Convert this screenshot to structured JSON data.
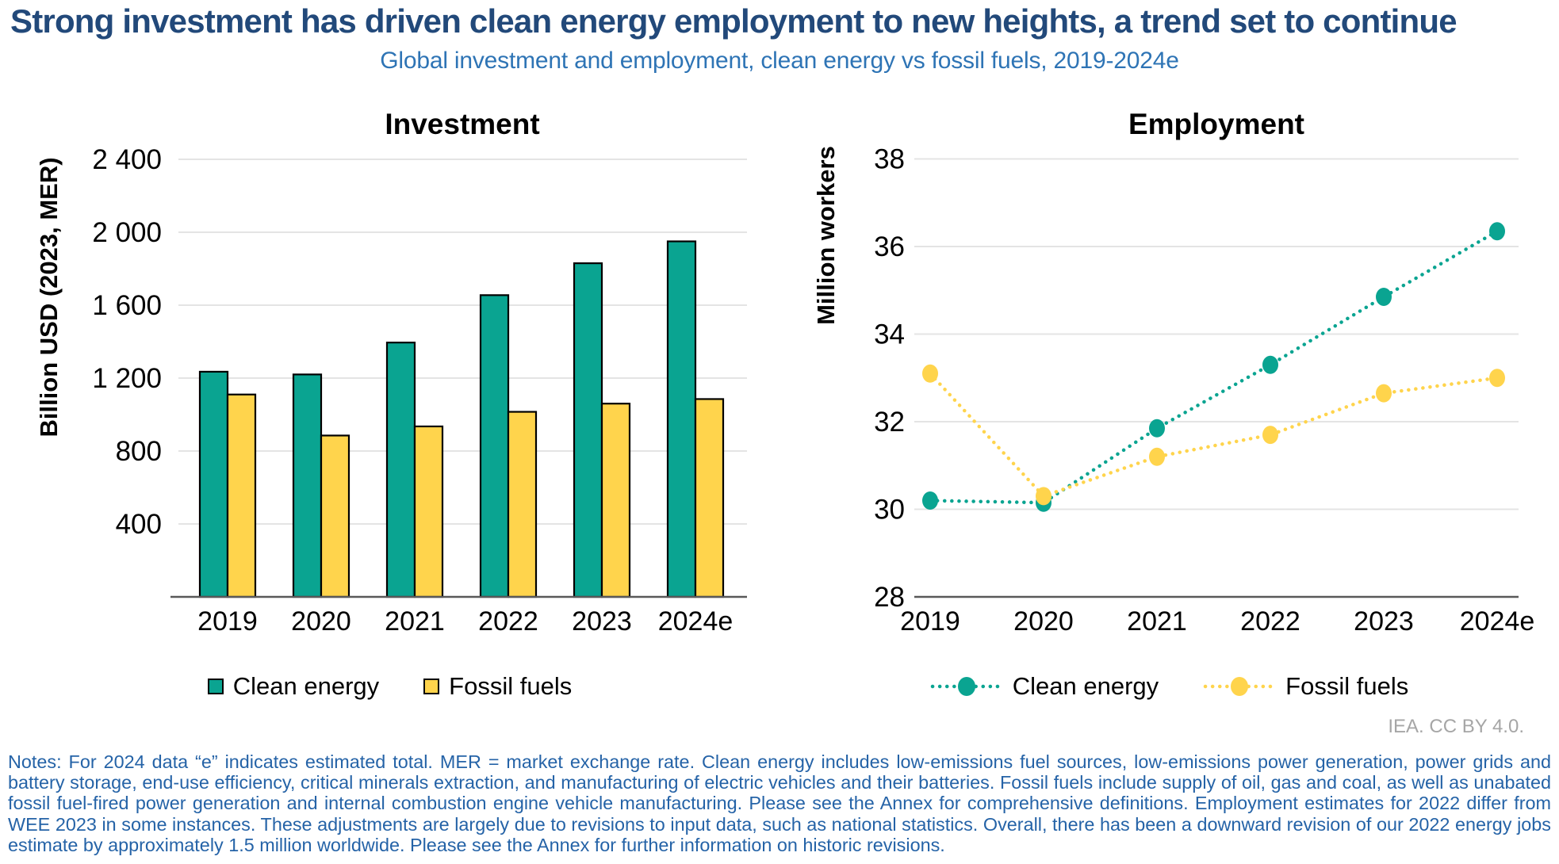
{
  "title": "Strong investment has driven clean energy employment to new heights, a trend set to continue",
  "subtitle": "Global investment and employment, clean energy vs fossil fuels, 2019-2024e",
  "attribution": "IEA. CC BY 4.0.",
  "notes": "Notes: For 2024 data “e” indicates estimated total. MER = market exchange rate. Clean energy includes low-emissions fuel sources, low-emissions power generation, power grids and battery storage, end-use efficiency, critical minerals extraction, and manufacturing of electric vehicles and their batteries. Fossil fuels include supply of oil, gas and coal, as well as unabated fossil fuel-fired power generation and internal combustion engine vehicle manufacturing. Please see the Annex for comprehensive definitions. Employment estimates for 2022 differ from WEE 2023 in some instances. These adjustments are largely due to revisions to input data, such as national statistics. Overall, there has been a downward revision of our 2022 energy jobs estimate by approximately 1.5 million worldwide. Please see the Annex for further information on historic revisions.",
  "colors": {
    "clean": "#0AA491",
    "fossil": "#FFD44C",
    "title": "#22497A",
    "subtitle": "#2E74B5",
    "notes": "#2563A7",
    "gridline": "#E4E4E4",
    "axis": "#595959",
    "attribution": "#A6A6A6",
    "bar_stroke": "#000000"
  },
  "chart_data": [
    {
      "type": "bar",
      "title": "Investment",
      "ylabel": "Billion USD (2023, MER)",
      "categories": [
        "2019",
        "2020",
        "2021",
        "2022",
        "2023",
        "2024e"
      ],
      "series": [
        {
          "name": "Clean energy",
          "color": "#0AA491",
          "values": [
            1235,
            1220,
            1395,
            1655,
            1830,
            1950
          ]
        },
        {
          "name": "Fossil fuels",
          "color": "#FFD44C",
          "values": [
            1110,
            885,
            935,
            1015,
            1060,
            1085
          ]
        }
      ],
      "ylim": [
        0,
        2400
      ],
      "yticks": [
        400,
        800,
        1200,
        1600,
        2000,
        2400
      ],
      "ytick_labels": [
        "400",
        "800",
        "1 200",
        "1 600",
        "2 000",
        "2 400"
      ],
      "grid": true,
      "legend_position": "bottom"
    },
    {
      "type": "line",
      "title": "Employment",
      "ylabel": "Million workers",
      "categories": [
        "2019",
        "2020",
        "2021",
        "2022",
        "2023",
        "2024e"
      ],
      "series": [
        {
          "name": "Clean energy",
          "color": "#0AA491",
          "values": [
            30.2,
            30.15,
            31.85,
            33.3,
            34.85,
            36.35
          ]
        },
        {
          "name": "Fossil fuels",
          "color": "#FFD44C",
          "values": [
            33.1,
            30.3,
            31.2,
            31.7,
            32.65,
            33.0
          ]
        }
      ],
      "ylim": [
        28,
        38
      ],
      "yticks": [
        28,
        30,
        32,
        34,
        36,
        38
      ],
      "ytick_labels": [
        "28",
        "30",
        "32",
        "34",
        "36",
        "38"
      ],
      "line_style": "dotted",
      "grid": true,
      "legend_position": "bottom"
    }
  ]
}
